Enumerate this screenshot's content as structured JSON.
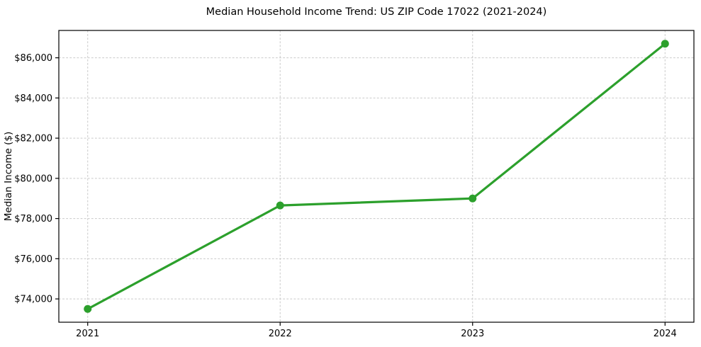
{
  "figure": {
    "background": "#ffffff"
  },
  "chart_data": {
    "type": "line",
    "title": "Median Household Income Trend: US ZIP Code 17022 (2021-2024)",
    "xlabel": "",
    "ylabel": "Median Income ($)",
    "x": [
      2021,
      2022,
      2023,
      2024
    ],
    "values": [
      73500,
      78650,
      79000,
      86700
    ],
    "xticks": [
      2021,
      2022,
      2023,
      2024
    ],
    "yticks": [
      74000,
      76000,
      78000,
      80000,
      82000,
      84000,
      86000
    ],
    "ytick_labels": [
      "$74,000",
      "$76,000",
      "$78,000",
      "$80,000",
      "$82,000",
      "$84,000",
      "$86,000"
    ],
    "xtick_labels": [
      "2021",
      "2022",
      "2023",
      "2024"
    ],
    "xlim": [
      2020.85,
      2024.15
    ],
    "ylim": [
      72840,
      87360
    ],
    "line_color": "#2ca02c",
    "marker": "circle",
    "grid": {
      "show": true,
      "line_style": "dashed",
      "color": "#c9c9c9"
    },
    "axes": {
      "border_color": "#000000",
      "tick_color": "#000000",
      "text_color": "#000000"
    },
    "legend": {
      "show": false
    }
  }
}
